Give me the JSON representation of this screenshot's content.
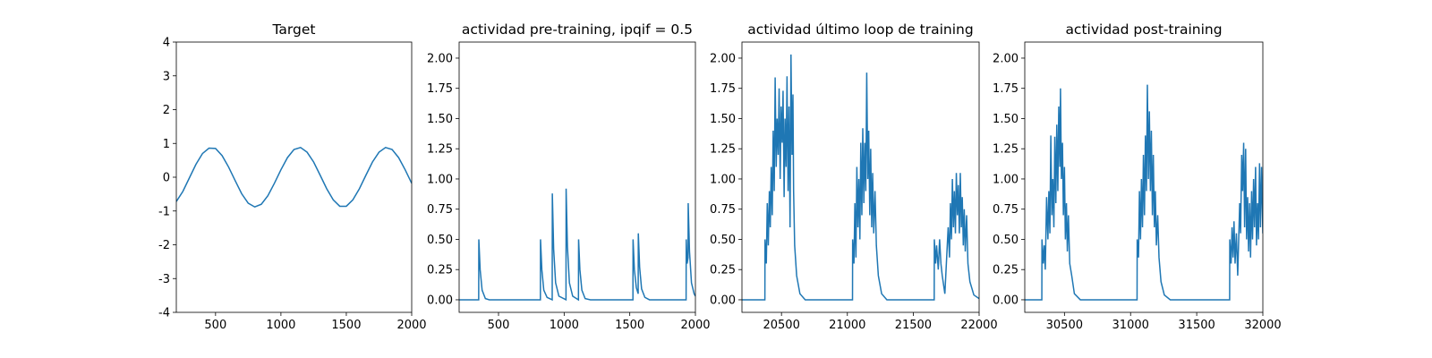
{
  "chart_data": [
    {
      "type": "line",
      "title": "Target",
      "color": "#1f77b4",
      "x": [
        200,
        250,
        300,
        350,
        400,
        450,
        500,
        550,
        600,
        650,
        700,
        750,
        800,
        850,
        900,
        950,
        1000,
        1050,
        1100,
        1150,
        1200,
        1250,
        1300,
        1350,
        1400,
        1450,
        1500,
        1550,
        1600,
        1650,
        1700,
        1750,
        1800,
        1850,
        1900,
        1950,
        2000
      ],
      "values": [
        -0.72,
        -0.42,
        -0.02,
        0.38,
        0.7,
        0.86,
        0.85,
        0.64,
        0.3,
        -0.1,
        -0.49,
        -0.77,
        -0.88,
        -0.8,
        -0.55,
        -0.18,
        0.22,
        0.58,
        0.82,
        0.88,
        0.74,
        0.45,
        0.06,
        -0.34,
        -0.67,
        -0.86,
        -0.86,
        -0.67,
        -0.34,
        0.06,
        0.45,
        0.74,
        0.88,
        0.82,
        0.58,
        0.22,
        -0.18
      ],
      "xlim": [
        200,
        2000
      ],
      "xticks": [
        500,
        1000,
        1500,
        2000
      ],
      "ylim": [
        -4,
        4
      ],
      "yticks": [
        -4,
        -3,
        -2,
        -1,
        0,
        1,
        2,
        3,
        4
      ]
    },
    {
      "type": "line",
      "title": "actividad pre-training, ipqif = 0.5",
      "color": "#1f77b4",
      "x": [
        200,
        349,
        350,
        360,
        375,
        400,
        430,
        819,
        820,
        830,
        845,
        870,
        909,
        910,
        920,
        935,
        960,
        1014,
        1015,
        1025,
        1040,
        1065,
        1109,
        1110,
        1120,
        1135,
        1160,
        1200,
        1524,
        1525,
        1535,
        1550,
        1564,
        1565,
        1575,
        1590,
        1615,
        1650,
        1929,
        1930,
        1937,
        1944,
        1945,
        1955,
        1970,
        1990,
        2000
      ],
      "values": [
        0,
        0,
        0.5,
        0.25,
        0.08,
        0.01,
        0,
        0,
        0.5,
        0.25,
        0.08,
        0.02,
        0,
        0.88,
        0.42,
        0.14,
        0.03,
        0,
        0.92,
        0.44,
        0.14,
        0.03,
        0,
        0.5,
        0.25,
        0.08,
        0.01,
        0,
        0,
        0.5,
        0.25,
        0.1,
        0.05,
        0.55,
        0.27,
        0.09,
        0.02,
        0,
        0,
        0.5,
        0.3,
        0.35,
        0.8,
        0.4,
        0.14,
        0.05,
        0.03
      ],
      "xlim": [
        200,
        2000
      ],
      "xticks": [
        500,
        1000,
        1500,
        2000
      ],
      "ylim": [
        -0.104,
        2.133
      ],
      "yticks": [
        {
          "value": 0,
          "label": "0.00"
        },
        {
          "value": 0.25,
          "label": "0.25"
        },
        {
          "value": 0.5,
          "label": "0.50"
        },
        {
          "value": 0.75,
          "label": "0.75"
        },
        {
          "value": 1,
          "label": "1.00"
        },
        {
          "value": 1.25,
          "label": "1.25"
        },
        {
          "value": 1.5,
          "label": "1.50"
        },
        {
          "value": 1.75,
          "label": "1.75"
        },
        {
          "value": 2,
          "label": "2.00"
        }
      ]
    },
    {
      "type": "line",
      "title": "actividad último loop de training",
      "color": "#1f77b4",
      "x": [
        20200,
        20374,
        20375,
        20385,
        20392,
        20400,
        20408,
        20415,
        20422,
        20430,
        20437,
        20445,
        20452,
        20460,
        20467,
        20475,
        20482,
        20490,
        20497,
        20505,
        20512,
        20520,
        20527,
        20535,
        20542,
        20550,
        20557,
        20565,
        20572,
        20580,
        20587,
        20592,
        20600,
        20615,
        20640,
        20680,
        21039,
        21040,
        21050,
        21057,
        21065,
        21072,
        21080,
        21087,
        21095,
        21102,
        21110,
        21117,
        21125,
        21132,
        21140,
        21147,
        21155,
        21162,
        21170,
        21177,
        21185,
        21192,
        21200,
        21210,
        21220,
        21235,
        21260,
        21300,
        21659,
        21660,
        21670,
        21677,
        21690,
        21700,
        21710,
        21720,
        21740,
        21765,
        21775,
        21782,
        21790,
        21797,
        21805,
        21812,
        21820,
        21827,
        21835,
        21842,
        21850,
        21857,
        21865,
        21872,
        21880,
        21887,
        21895,
        21905,
        21915,
        21930,
        21960,
        22000
      ],
      "values": [
        0,
        0,
        0.5,
        0.3,
        0.8,
        0.45,
        0.9,
        0.6,
        1.1,
        0.7,
        1.4,
        0.9,
        1.84,
        1.1,
        1.5,
        1.2,
        1.75,
        1.0,
        1.6,
        1.3,
        1.73,
        0.85,
        1.5,
        1.1,
        1.85,
        0.9,
        1.6,
        0.6,
        2.03,
        1.2,
        1.7,
        0.9,
        0.45,
        0.2,
        0.05,
        0,
        0,
        0.5,
        0.3,
        0.8,
        0.35,
        1.1,
        0.6,
        1.0,
        0.5,
        1.3,
        0.7,
        1.42,
        0.8,
        1.3,
        0.9,
        1.88,
        1.0,
        1.4,
        0.7,
        1.25,
        0.6,
        1.05,
        0.55,
        0.9,
        0.45,
        0.2,
        0.05,
        0,
        0,
        0.5,
        0.3,
        0.45,
        0.25,
        0.5,
        0.3,
        0.2,
        0.05,
        0.6,
        0.35,
        0.8,
        0.5,
        1.0,
        0.6,
        0.9,
        0.55,
        1.05,
        0.7,
        0.95,
        0.55,
        1.05,
        0.6,
        0.85,
        0.45,
        0.75,
        0.4,
        0.7,
        0.3,
        0.15,
        0.04,
        0.01
      ],
      "xlim": [
        20200,
        22000
      ],
      "xticks": [
        20500,
        21000,
        21500,
        22000
      ],
      "ylim": [
        -0.104,
        2.133
      ],
      "yticks": [
        {
          "value": 0,
          "label": "0.00"
        },
        {
          "value": 0.25,
          "label": "0.25"
        },
        {
          "value": 0.5,
          "label": "0.50"
        },
        {
          "value": 0.75,
          "label": "0.75"
        },
        {
          "value": 1,
          "label": "1.00"
        },
        {
          "value": 1.25,
          "label": "1.25"
        },
        {
          "value": 1.5,
          "label": "1.50"
        },
        {
          "value": 1.75,
          "label": "1.75"
        },
        {
          "value": 2,
          "label": "2.00"
        }
      ]
    },
    {
      "type": "line",
      "title": "actividad post-training",
      "color": "#1f77b4",
      "x": [
        30200,
        30329,
        30330,
        30340,
        30347,
        30355,
        30365,
        30375,
        30382,
        30390,
        30397,
        30405,
        30412,
        30420,
        30427,
        30435,
        30442,
        30450,
        30457,
        30465,
        30470,
        30477,
        30485,
        30492,
        30500,
        30507,
        30515,
        30522,
        30530,
        30540,
        30555,
        30575,
        30620,
        31049,
        31050,
        31060,
        31067,
        31075,
        31082,
        31090,
        31097,
        31105,
        31112,
        31120,
        31127,
        31135,
        31142,
        31150,
        31157,
        31165,
        31172,
        31180,
        31187,
        31195,
        31205,
        31215,
        31230,
        31255,
        31300,
        31749,
        31750,
        31760,
        31767,
        31775,
        31782,
        31790,
        31800,
        31810,
        31825,
        31832,
        31840,
        31847,
        31855,
        31862,
        31870,
        31877,
        31885,
        31892,
        31900,
        31907,
        31915,
        31922,
        31930,
        31937,
        31945,
        31952,
        31960,
        31967,
        31975,
        31982,
        31990,
        32000
      ],
      "values": [
        0,
        0,
        0.5,
        0.3,
        0.45,
        0.25,
        0.85,
        0.5,
        0.9,
        0.55,
        1.36,
        0.7,
        1.0,
        0.6,
        1.35,
        0.8,
        1.45,
        0.9,
        1.6,
        1.1,
        1.75,
        1.0,
        1.3,
        0.7,
        1.1,
        0.5,
        0.8,
        0.4,
        0.7,
        0.3,
        0.2,
        0.05,
        0,
        0,
        0.5,
        0.35,
        0.9,
        0.5,
        1.0,
        0.6,
        1.2,
        0.7,
        1.36,
        0.9,
        1.78,
        1.0,
        1.56,
        0.9,
        1.4,
        0.7,
        1.2,
        0.6,
        0.9,
        0.45,
        0.7,
        0.35,
        0.15,
        0.04,
        0,
        0,
        0.5,
        0.3,
        0.6,
        0.35,
        0.65,
        0.3,
        0.55,
        0.2,
        0.8,
        0.55,
        1.2,
        0.9,
        1.3,
        0.6,
        1.25,
        0.5,
        0.85,
        0.4,
        0.8,
        0.35,
        0.9,
        0.5,
        1.0,
        0.6,
        1.1,
        0.45,
        0.8,
        0.5,
        1.13,
        0.6,
        1.1,
        0.55
      ],
      "xlim": [
        30200,
        32000
      ],
      "xticks": [
        30500,
        31000,
        31500,
        32000
      ],
      "ylim": [
        -0.104,
        2.133
      ],
      "yticks": [
        {
          "value": 0,
          "label": "0.00"
        },
        {
          "value": 0.25,
          "label": "0.25"
        },
        {
          "value": 0.5,
          "label": "0.50"
        },
        {
          "value": 0.75,
          "label": "0.75"
        },
        {
          "value": 1,
          "label": "1.00"
        },
        {
          "value": 1.25,
          "label": "1.25"
        },
        {
          "value": 1.5,
          "label": "1.50"
        },
        {
          "value": 1.75,
          "label": "1.75"
        },
        {
          "value": 2,
          "label": "2.00"
        }
      ]
    }
  ]
}
